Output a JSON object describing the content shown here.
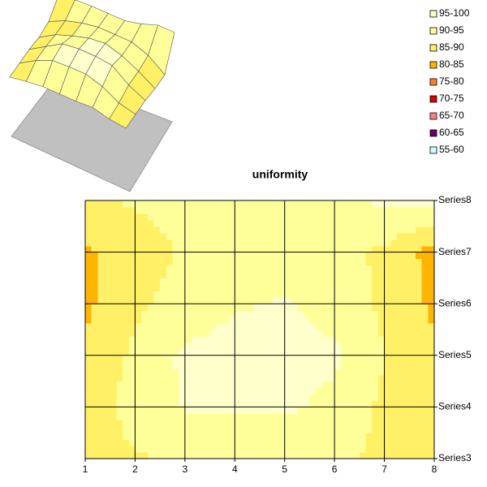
{
  "chart_data": {
    "type": "contour",
    "title": "uniformity",
    "categories": [
      1,
      2,
      3,
      4,
      5,
      6,
      7,
      8
    ],
    "series": [
      {
        "name": "Series3",
        "values": [
          88,
          89.5,
          90.5,
          90.5,
          90.5,
          91,
          89,
          88
        ]
      },
      {
        "name": "Series4",
        "values": [
          87,
          92,
          95.5,
          96,
          96,
          93.5,
          89,
          87
        ]
      },
      {
        "name": "Series5",
        "values": [
          86,
          91,
          96,
          97,
          97,
          96,
          90,
          86
        ]
      },
      {
        "name": "Series6",
        "values": [
          84,
          89,
          92,
          94.5,
          95.5,
          93,
          89,
          84
        ]
      },
      {
        "name": "Series7",
        "values": [
          84,
          88,
          90.5,
          92,
          92,
          92,
          89,
          83
        ]
      },
      {
        "name": "Series8",
        "values": [
          89,
          90.5,
          91,
          91,
          91,
          93,
          96,
          96
        ]
      }
    ],
    "levels": [
      {
        "label": "95-100",
        "min": 95,
        "max": 100,
        "color": "#FFFFCC"
      },
      {
        "label": "90-95",
        "min": 90,
        "max": 95,
        "color": "#FFFF99"
      },
      {
        "label": "85-90",
        "min": 85,
        "max": 90,
        "color": "#FFF066"
      },
      {
        "label": "80-85",
        "min": 80,
        "max": 85,
        "color": "#FFB400"
      },
      {
        "label": "75-80",
        "min": 75,
        "max": 80,
        "color": "#FF7F27"
      },
      {
        "label": "70-75",
        "min": 70,
        "max": 75,
        "color": "#E00000"
      },
      {
        "label": "65-70",
        "min": 65,
        "max": 70,
        "color": "#FF8080"
      },
      {
        "label": "60-65",
        "min": 60,
        "max": 65,
        "color": "#660066"
      },
      {
        "label": "55-60",
        "min": 55,
        "max": 60,
        "color": "#CCFFFF"
      }
    ],
    "grid": true
  }
}
